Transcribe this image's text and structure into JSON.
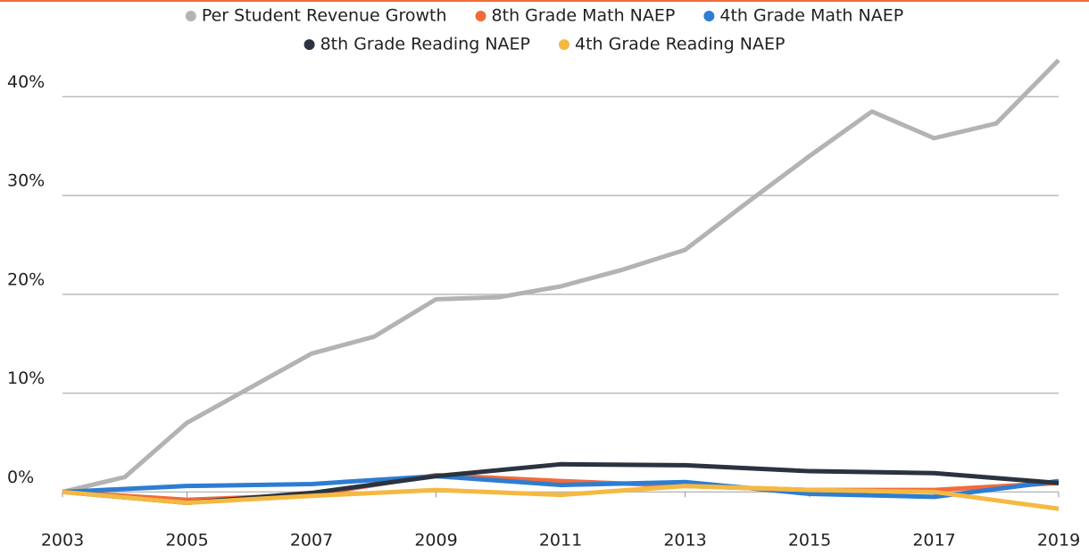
{
  "chart_data": {
    "type": "line",
    "xlim": [
      2003,
      2019
    ],
    "xticks": [
      2003,
      2005,
      2007,
      2009,
      2011,
      2013,
      2015,
      2017,
      2019
    ],
    "ylim": [
      -2.5,
      45
    ],
    "yticks": [
      {
        "value": 0,
        "label": "0%"
      },
      {
        "value": 10,
        "label": "10%"
      },
      {
        "value": 20,
        "label": "20%"
      },
      {
        "value": 30,
        "label": "30%"
      },
      {
        "value": 40,
        "label": "40%"
      }
    ],
    "grid": true,
    "legend": "top",
    "series": [
      {
        "name": "Per Student Revenue Growth",
        "color": "#b3b3b3",
        "x": [
          2003,
          2004,
          2005,
          2006,
          2007,
          2008,
          2009,
          2010,
          2011,
          2012,
          2013,
          2014,
          2015,
          2016,
          2017,
          2018,
          2019
        ],
        "values": [
          0,
          1.5,
          7,
          10.5,
          14,
          15.7,
          19.5,
          19.7,
          20.8,
          22.5,
          24.5,
          29.3,
          34,
          38.5,
          35.8,
          37.3,
          43.7
        ]
      },
      {
        "name": "8th Grade Math NAEP",
        "color": "#f26b3a",
        "x": [
          2003,
          2005,
          2007,
          2009,
          2011,
          2013,
          2015,
          2017,
          2019
        ],
        "values": [
          0,
          -0.8,
          -0.3,
          1.7,
          1.1,
          0.6,
          0.2,
          0.2,
          0.9
        ]
      },
      {
        "name": "4th Grade Math NAEP",
        "color": "#2d7dd2",
        "x": [
          2003,
          2005,
          2007,
          2009,
          2011,
          2013,
          2015,
          2017,
          2019
        ],
        "values": [
          0,
          0.6,
          0.8,
          1.6,
          0.7,
          1.0,
          -0.2,
          -0.5,
          1.1
        ]
      },
      {
        "name": "8th Grade Reading NAEP",
        "color": "#2b3340",
        "x": [
          2003,
          2005,
          2007,
          2009,
          2011,
          2013,
          2015,
          2017,
          2019
        ],
        "values": [
          0,
          -1.1,
          -0.1,
          1.6,
          2.8,
          2.7,
          2.1,
          1.9,
          0.9
        ]
      },
      {
        "name": "4th Grade Reading NAEP",
        "color": "#f5b942",
        "x": [
          2003,
          2005,
          2007,
          2009,
          2011,
          2013,
          2015,
          2017,
          2019
        ],
        "values": [
          0,
          -1.1,
          -0.4,
          0.2,
          -0.3,
          0.6,
          0.2,
          0.0,
          -1.7
        ]
      }
    ]
  }
}
